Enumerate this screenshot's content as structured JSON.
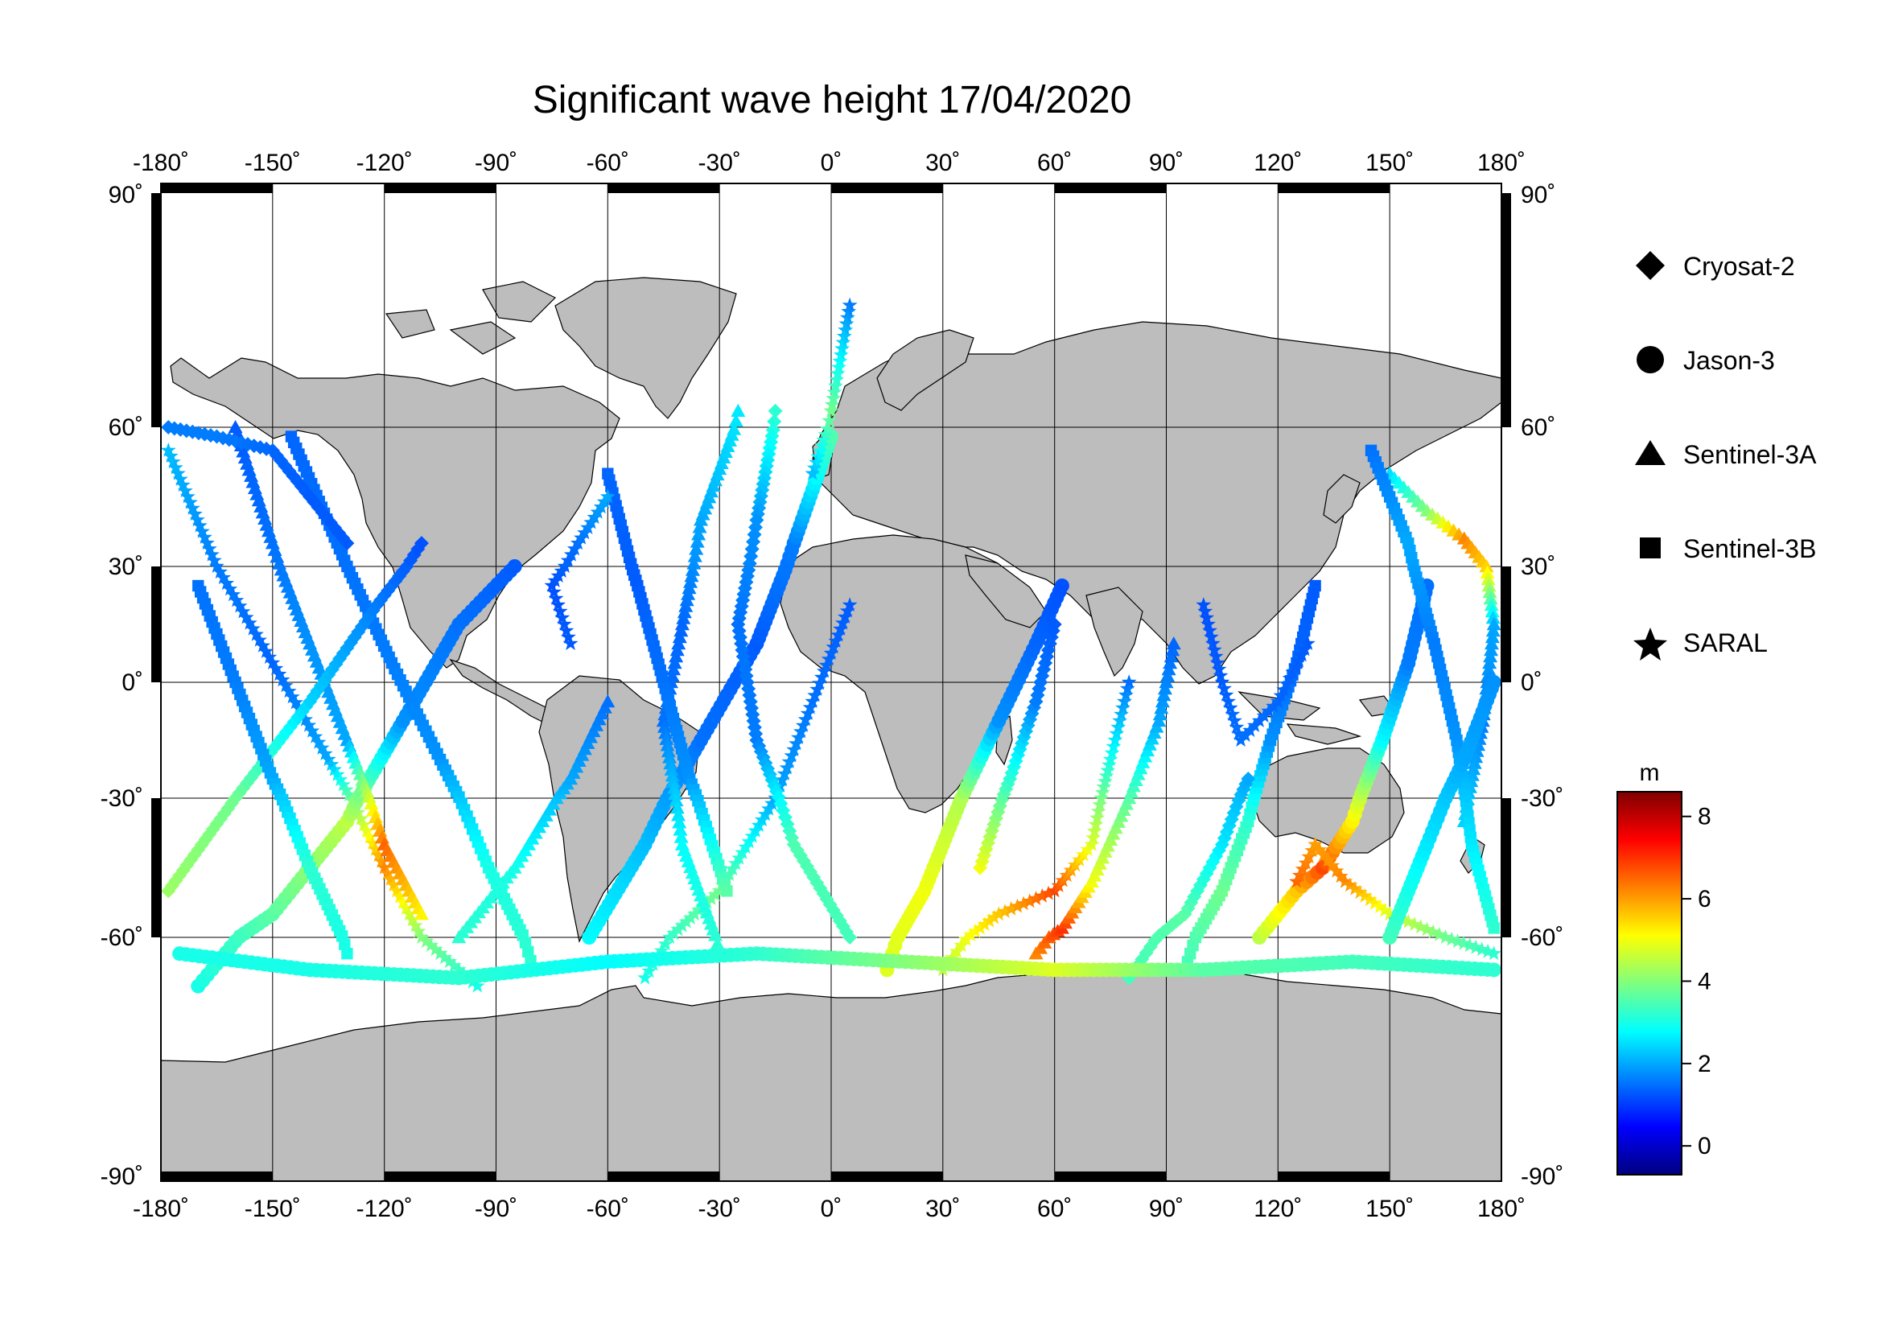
{
  "title": "Significant wave height 17/04/2020",
  "x_ticks": [
    "-180˚",
    "-150˚",
    "-120˚",
    "-90˚",
    "-60˚",
    "-30˚",
    "0˚",
    "30˚",
    "60˚",
    "90˚",
    "120˚",
    "150˚",
    "180˚"
  ],
  "y_ticks": [
    "90˚",
    "60˚",
    "30˚",
    "0˚",
    "-30˚",
    "-60˚",
    "-90˚"
  ],
  "legend": {
    "items": [
      {
        "label": "Cryosat-2",
        "marker": "diamond"
      },
      {
        "label": "Jason-3",
        "marker": "circle"
      },
      {
        "label": "Sentinel-3A",
        "marker": "triangle"
      },
      {
        "label": "Sentinel-3B",
        "marker": "square"
      },
      {
        "label": "SARAL",
        "marker": "star"
      }
    ]
  },
  "colorbar": {
    "unit": "m",
    "min": -0.7,
    "max": 8.6,
    "ticks": [
      "0",
      "2",
      "4",
      "6",
      "8"
    ],
    "colormap": [
      "#00007f",
      "#0000ff",
      "#007fff",
      "#00ffff",
      "#7fff7f",
      "#ffff00",
      "#ff7f00",
      "#ff0000",
      "#7f0000"
    ]
  },
  "colors": {
    "land": "#bdbdbd",
    "ocean": "#ffffff",
    "frame": "#000000"
  },
  "chart_data": {
    "type": "scatter",
    "title": "Significant wave height 17/04/2020",
    "xlim": [
      -180,
      180
    ],
    "ylim": [
      -90,
      90
    ],
    "grid": true,
    "legend_placement": "right",
    "tracks": [
      {
        "sat": "SARAL",
        "pts": [
          [
            -178,
            55
          ],
          [
            -165,
            30
          ],
          [
            -150,
            5
          ],
          [
            -135,
            -20
          ],
          [
            -120,
            -45
          ],
          [
            -110,
            -60
          ],
          [
            -95,
            -66
          ]
        ],
        "swh": [
          2.2,
          1.6,
          1.4,
          2.0,
          6.2,
          4.0,
          3.0
        ]
      },
      {
        "sat": "Jason-3",
        "pts": [
          [
            -170,
            -66
          ],
          [
            -150,
            -55
          ],
          [
            -130,
            -35
          ],
          [
            -115,
            -10
          ],
          [
            -100,
            15
          ],
          [
            -85,
            30
          ]
        ],
        "swh": [
          3.0,
          3.6,
          4.5,
          1.8,
          1.5,
          1.3
        ]
      },
      {
        "sat": "Sentinel-3A",
        "pts": [
          [
            -160,
            60
          ],
          [
            -150,
            35
          ],
          [
            -140,
            10
          ],
          [
            -130,
            -15
          ],
          [
            -120,
            -40
          ],
          [
            -110,
            -55
          ]
        ],
        "swh": [
          1.3,
          1.5,
          1.8,
          2.0,
          6.5,
          5.2
        ]
      },
      {
        "sat": "Sentinel-3B",
        "pts": [
          [
            -145,
            58
          ],
          [
            -130,
            30
          ],
          [
            -118,
            5
          ],
          [
            -105,
            -20
          ],
          [
            -92,
            -45
          ],
          [
            -80,
            -64
          ]
        ],
        "swh": [
          1.4,
          1.5,
          1.6,
          1.8,
          3.0,
          3.2
        ]
      },
      {
        "sat": "Cryosat-2",
        "pts": [
          [
            -178,
            -50
          ],
          [
            -160,
            -30
          ],
          [
            -140,
            -5
          ],
          [
            -122,
            20
          ],
          [
            -110,
            35
          ]
        ],
        "swh": [
          4.2,
          3.8,
          2.4,
          1.6,
          1.2
        ]
      },
      {
        "sat": "Jason-3",
        "pts": [
          [
            -65,
            -60
          ],
          [
            -50,
            -40
          ],
          [
            -35,
            -15
          ],
          [
            -20,
            10
          ],
          [
            -10,
            35
          ],
          [
            0,
            58
          ]
        ],
        "swh": [
          2.8,
          2.2,
          1.5,
          1.3,
          1.6,
          3.5
        ]
      },
      {
        "sat": "SARAL",
        "pts": [
          [
            -50,
            -65
          ],
          [
            -30,
            -50
          ],
          [
            -15,
            -30
          ],
          [
            -5,
            -5
          ],
          [
            5,
            20
          ]
        ],
        "swh": [
          3.0,
          3.8,
          2.0,
          1.5,
          1.3
        ]
      },
      {
        "sat": "Sentinel-3A",
        "pts": [
          [
            -25,
            62
          ],
          [
            -35,
            40
          ],
          [
            -40,
            15
          ],
          [
            -45,
            -10
          ],
          [
            -40,
            -40
          ],
          [
            -30,
            -62
          ]
        ],
        "swh": [
          2.6,
          2.0,
          1.4,
          1.5,
          2.8,
          3.2
        ]
      },
      {
        "sat": "Sentinel-3B",
        "pts": [
          [
            -60,
            50
          ],
          [
            -52,
            25
          ],
          [
            -45,
            0
          ],
          [
            -38,
            -25
          ],
          [
            -28,
            -50
          ]
        ],
        "swh": [
          1.4,
          1.3,
          1.5,
          1.8,
          3.6
        ]
      },
      {
        "sat": "Cryosat-2",
        "pts": [
          [
            -15,
            62
          ],
          [
            -20,
            40
          ],
          [
            -25,
            15
          ],
          [
            -20,
            -15
          ],
          [
            -10,
            -40
          ],
          [
            5,
            -60
          ]
        ],
        "swh": [
          3.2,
          1.8,
          1.5,
          1.6,
          3.5,
          3.4
        ]
      },
      {
        "sat": "SARAL",
        "pts": [
          [
            5,
            75
          ],
          [
            0,
            62
          ],
          [
            -5,
            50
          ]
        ],
        "swh": [
          1.6,
          3.8,
          2.2
        ]
      },
      {
        "sat": "Jason-3",
        "pts": [
          [
            15,
            -64
          ],
          [
            25,
            -50
          ],
          [
            35,
            -30
          ],
          [
            45,
            -10
          ],
          [
            55,
            10
          ],
          [
            62,
            25
          ]
        ],
        "swh": [
          4.8,
          5.0,
          4.4,
          1.8,
          1.4,
          1.2
        ]
      },
      {
        "sat": "SARAL",
        "pts": [
          [
            30,
            -64
          ],
          [
            45,
            -55
          ],
          [
            60,
            -50
          ],
          [
            70,
            -40
          ],
          [
            75,
            -20
          ],
          [
            80,
            0
          ]
        ],
        "swh": [
          4.5,
          5.6,
          6.8,
          4.8,
          3.0,
          1.5
        ]
      },
      {
        "sat": "Sentinel-3A",
        "pts": [
          [
            55,
            -62
          ],
          [
            62,
            -58
          ],
          [
            70,
            -48
          ],
          [
            80,
            -30
          ],
          [
            88,
            -10
          ],
          [
            92,
            10
          ]
        ],
        "swh": [
          6.2,
          7.0,
          5.0,
          3.6,
          2.0,
          1.4
        ]
      },
      {
        "sat": "Sentinel-3B",
        "pts": [
          [
            95,
            -64
          ],
          [
            105,
            -50
          ],
          [
            112,
            -35
          ],
          [
            118,
            -15
          ],
          [
            125,
            5
          ],
          [
            130,
            25
          ]
        ],
        "swh": [
          3.4,
          3.8,
          3.2,
          1.8,
          1.4,
          1.3
        ]
      },
      {
        "sat": "Cryosat-2",
        "pts": [
          [
            80,
            -65
          ],
          [
            95,
            -55
          ],
          [
            105,
            -40
          ],
          [
            112,
            -25
          ]
        ],
        "swh": [
          3.4,
          3.6,
          2.6,
          2.0
        ]
      },
      {
        "sat": "Jason-3",
        "pts": [
          [
            115,
            -60
          ],
          [
            125,
            -50
          ],
          [
            132,
            -45
          ],
          [
            140,
            -35
          ],
          [
            148,
            -15
          ],
          [
            155,
            5
          ],
          [
            160,
            25
          ]
        ],
        "swh": [
          4.5,
          5.6,
          6.8,
          5.2,
          2.8,
          1.6,
          1.5
        ]
      },
      {
        "sat": "SARAL",
        "pts": [
          [
            125,
            -48
          ],
          [
            130,
            -40
          ],
          [
            138,
            -48
          ],
          [
            150,
            -55
          ],
          [
            165,
            -60
          ],
          [
            178,
            -62
          ]
        ],
        "swh": [
          6.5,
          6.0,
          6.2,
          4.8,
          3.8,
          3.2
        ]
      },
      {
        "sat": "Sentinel-3A",
        "pts": [
          [
            150,
            50
          ],
          [
            160,
            42
          ],
          [
            170,
            36
          ],
          [
            176,
            30
          ],
          [
            178,
            15
          ],
          [
            175,
            -10
          ],
          [
            170,
            -35
          ]
        ],
        "swh": [
          2.5,
          4.0,
          6.2,
          5.5,
          2.0,
          1.6,
          2.4
        ]
      },
      {
        "sat": "Sentinel-3B",
        "pts": [
          [
            145,
            55
          ],
          [
            155,
            35
          ],
          [
            162,
            10
          ],
          [
            168,
            -15
          ],
          [
            172,
            -40
          ],
          [
            178,
            -58
          ]
        ],
        "swh": [
          1.5,
          2.0,
          1.6,
          1.8,
          2.6,
          3.2
        ]
      },
      {
        "sat": "Cryosat-2",
        "pts": [
          [
            -178,
            60
          ],
          [
            -165,
            58
          ],
          [
            -150,
            55
          ],
          [
            -140,
            45
          ],
          [
            -130,
            35
          ]
        ],
        "swh": [
          1.6,
          1.6,
          1.4,
          1.3,
          1.3
        ]
      },
      {
        "sat": "Jason-3",
        "pts": [
          [
            -175,
            -62
          ],
          [
            -140,
            -64
          ],
          [
            -100,
            -65
          ],
          [
            -60,
            -63
          ],
          [
            -20,
            -62
          ],
          [
            20,
            -63
          ],
          [
            60,
            -64
          ],
          [
            100,
            -64
          ],
          [
            140,
            -63
          ],
          [
            178,
            -64
          ]
        ],
        "swh": [
          3.0,
          3.0,
          3.2,
          2.8,
          3.2,
          4.0,
          4.8,
          3.6,
          3.4,
          3.2
        ]
      },
      {
        "sat": "SARAL",
        "pts": [
          [
            -70,
            10
          ],
          [
            -75,
            25
          ],
          [
            -68,
            35
          ],
          [
            -60,
            45
          ]
        ],
        "swh": [
          1.3,
          1.2,
          1.5,
          2.0
        ]
      },
      {
        "sat": "Sentinel-3A",
        "pts": [
          [
            -100,
            -60
          ],
          [
            -85,
            -45
          ],
          [
            -70,
            -25
          ],
          [
            -60,
            -5
          ]
        ],
        "swh": [
          3.2,
          3.0,
          2.0,
          1.5
        ]
      },
      {
        "sat": "Sentinel-3B",
        "pts": [
          [
            -170,
            25
          ],
          [
            -160,
            0
          ],
          [
            -150,
            -25
          ],
          [
            -140,
            -45
          ],
          [
            -130,
            -62
          ]
        ],
        "swh": [
          1.5,
          1.6,
          2.0,
          3.2,
          3.0
        ]
      },
      {
        "sat": "Cryosat-2",
        "pts": [
          [
            40,
            -45
          ],
          [
            48,
            -25
          ],
          [
            55,
            -5
          ],
          [
            60,
            15
          ]
        ],
        "swh": [
          5.0,
          3.2,
          1.6,
          1.3
        ]
      },
      {
        "sat": "SARAL",
        "pts": [
          [
            100,
            20
          ],
          [
            105,
            0
          ],
          [
            110,
            -15
          ],
          [
            120,
            -5
          ],
          [
            128,
            10
          ]
        ],
        "swh": [
          1.2,
          1.3,
          1.5,
          1.4,
          1.3
        ]
      },
      {
        "sat": "Jason-3",
        "pts": [
          [
            150,
            -60
          ],
          [
            160,
            -40
          ],
          [
            170,
            -20
          ],
          [
            178,
            0
          ]
        ],
        "swh": [
          3.4,
          2.6,
          2.0,
          1.8
        ]
      }
    ]
  }
}
